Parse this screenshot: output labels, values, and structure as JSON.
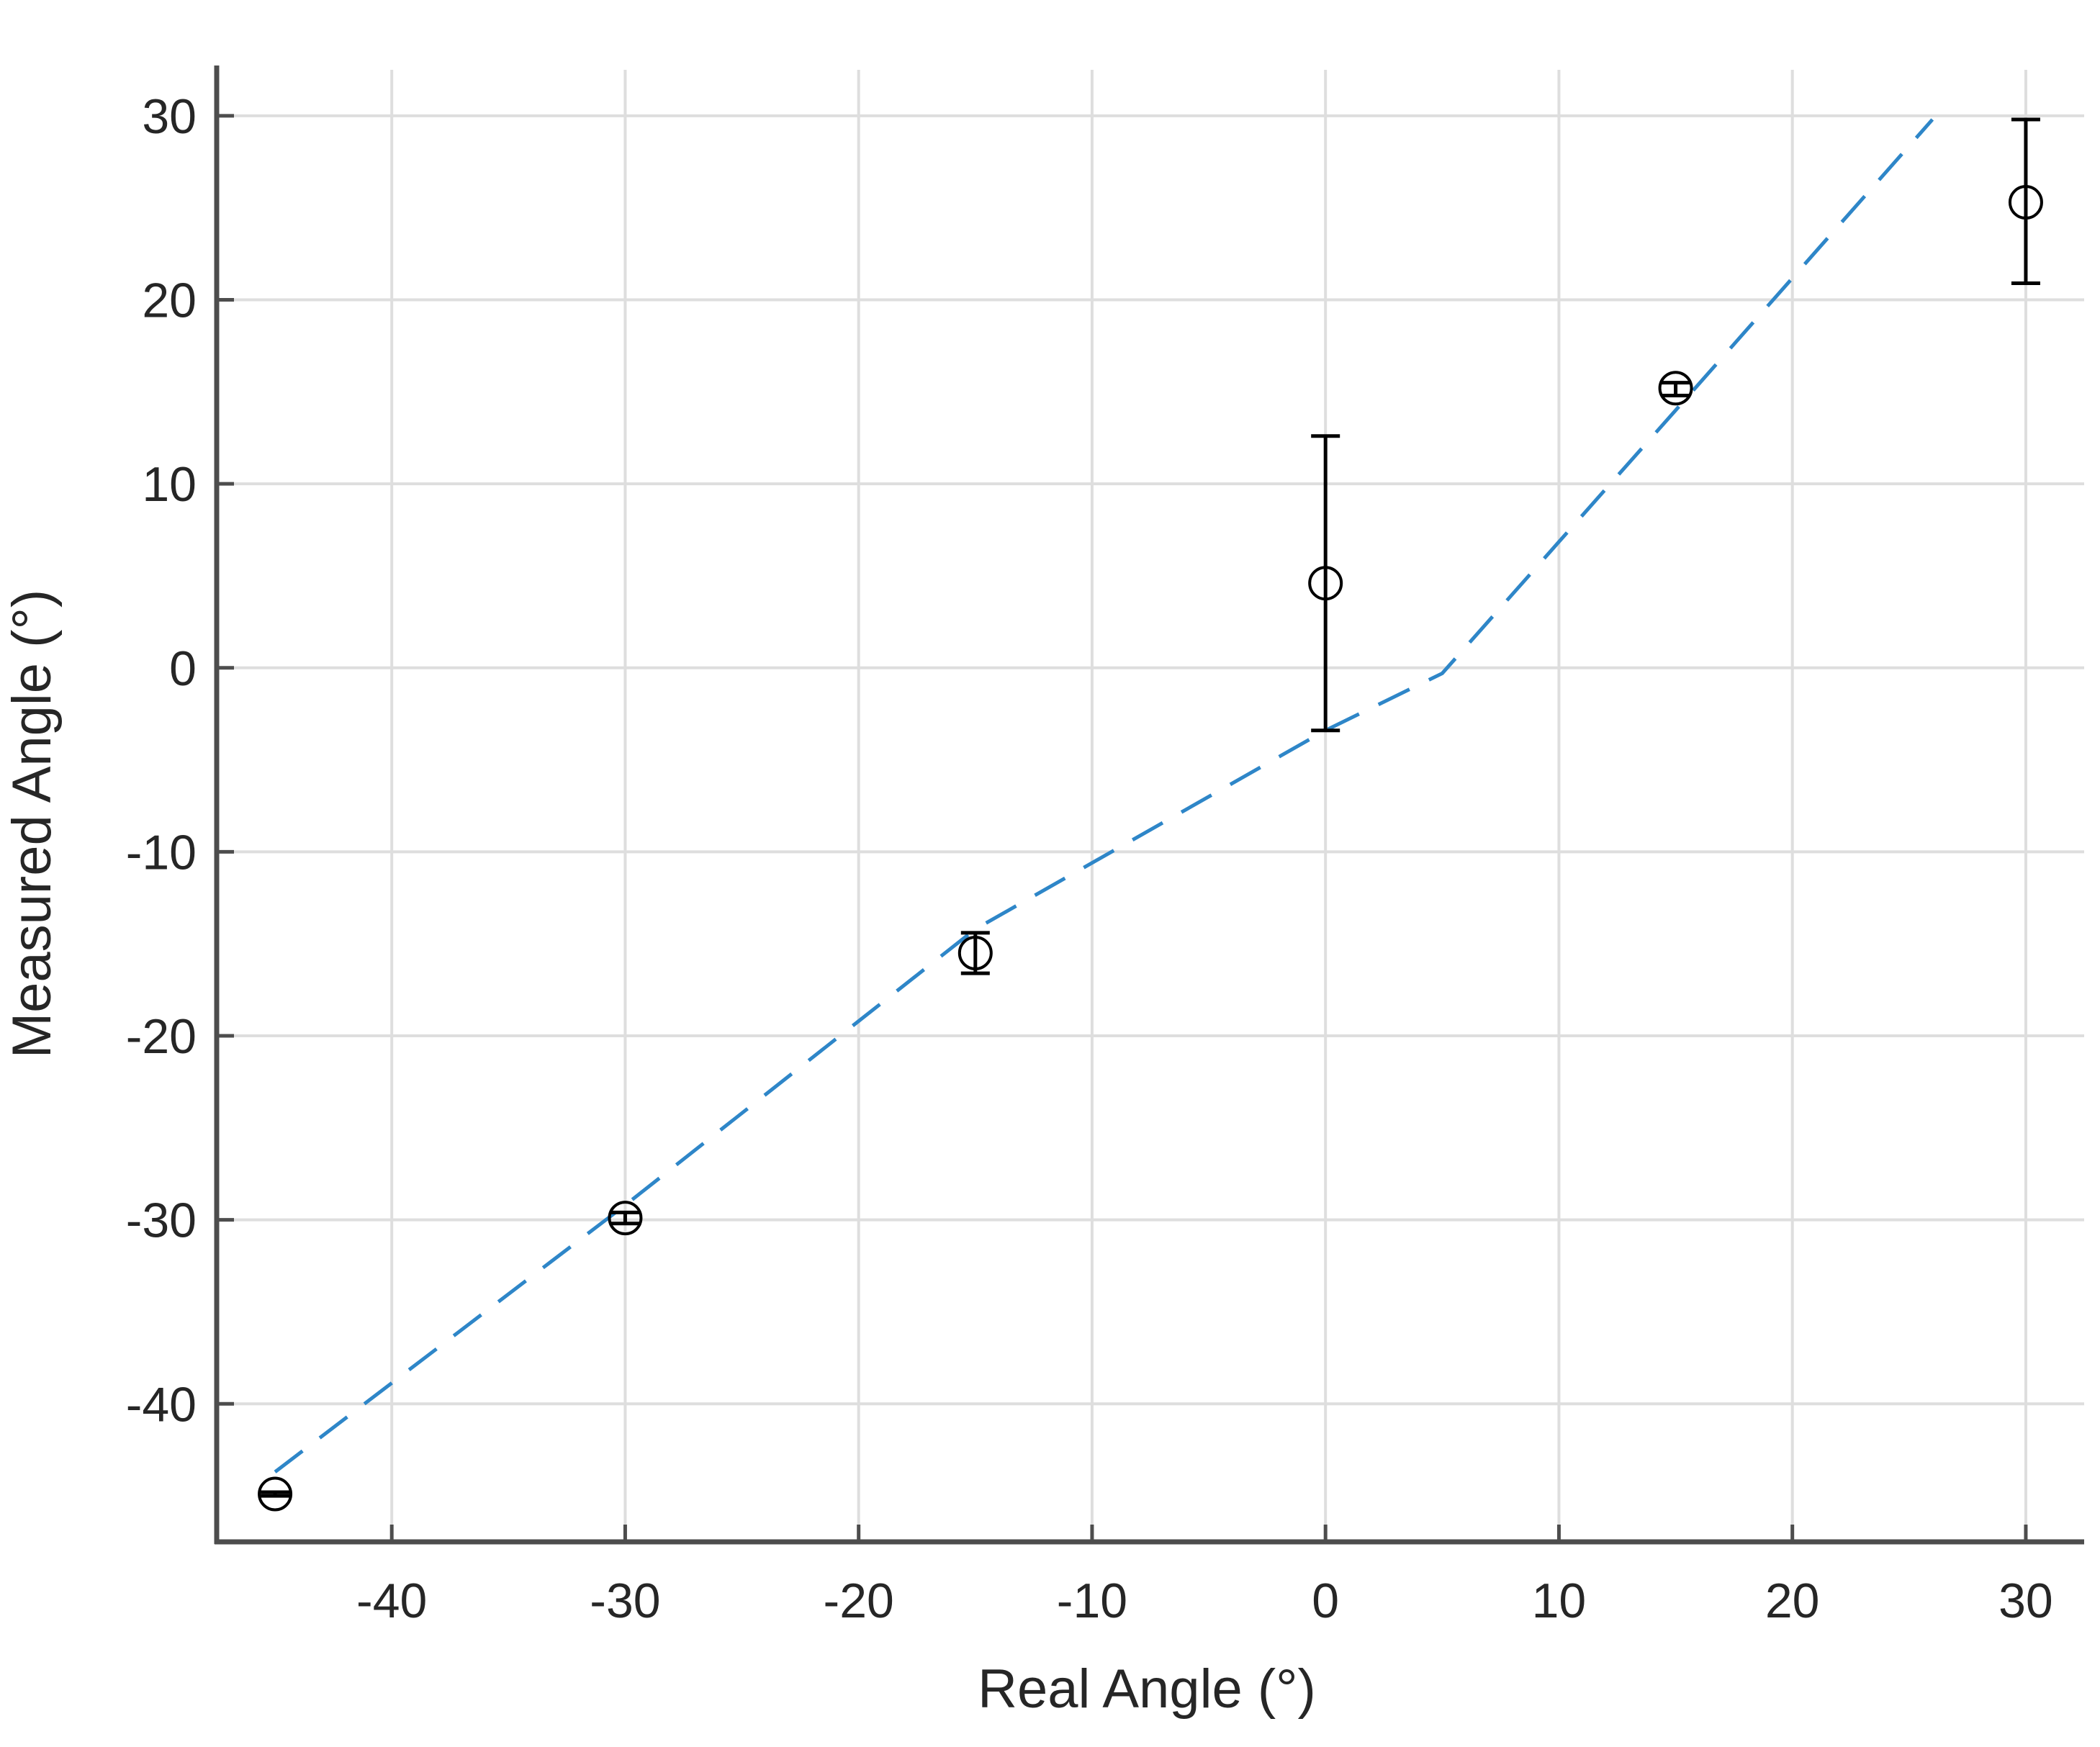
{
  "chart_data": {
    "type": "scatter",
    "xlabel": "Real Angle (°)",
    "ylabel": "Measured Angle (°)",
    "xlim": [
      -47.5,
      32.5
    ],
    "ylim": [
      -47.5,
      32.5
    ],
    "xticks": [
      -40,
      -30,
      -20,
      -10,
      0,
      10,
      20,
      30
    ],
    "yticks": [
      -40,
      -30,
      -20,
      -10,
      0,
      10,
      20,
      30
    ],
    "xtick_labels": [
      "-40",
      "-30",
      "-20",
      "-10",
      "0",
      "10",
      "20",
      "30"
    ],
    "ytick_labels": [
      "-40",
      "-30",
      "-20",
      "-10",
      "0",
      "10",
      "20",
      "30"
    ],
    "grid": true,
    "series": [
      {
        "kind": "errorbar",
        "marker": "open-circle",
        "color": "#000000",
        "points": [
          {
            "x": -45,
            "y": -44.9,
            "err_low": -45.0,
            "err_high": -44.8
          },
          {
            "x": -30,
            "y": -29.9,
            "err_low": -30.2,
            "err_high": -29.6
          },
          {
            "x": -15,
            "y": -15.5,
            "err_low": -16.6,
            "err_high": -14.4
          },
          {
            "x": 0,
            "y": 4.6,
            "err_low": -3.4,
            "err_high": 12.6
          },
          {
            "x": 15,
            "y": 15.2,
            "err_low": 14.8,
            "err_high": 15.5
          },
          {
            "x": 30,
            "y": 25.3,
            "err_low": 20.9,
            "err_high": 29.8
          }
        ]
      },
      {
        "kind": "line",
        "style": "dashed",
        "color": "#2e86c8",
        "points": [
          {
            "x": -45,
            "y": -43.7
          },
          {
            "x": -30,
            "y": -29.2
          },
          {
            "x": -15,
            "y": -14.2
          },
          {
            "x": 0,
            "y": -3.4
          },
          {
            "x": 5,
            "y": -0.3
          },
          {
            "x": 15,
            "y": 14.0
          },
          {
            "x": 26,
            "y": 29.8
          }
        ]
      }
    ]
  }
}
